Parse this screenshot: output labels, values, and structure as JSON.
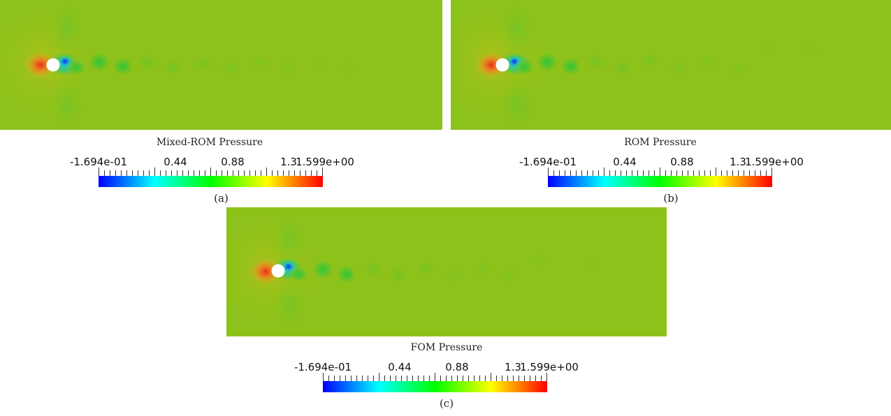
{
  "panels": [
    {
      "id": "a",
      "title": "Mixed-ROM Pressure",
      "caption": "(a)"
    },
    {
      "id": "b",
      "title": "ROM Pressure",
      "caption": "(b)"
    },
    {
      "id": "c",
      "title": "FOM Pressure",
      "caption": "(c)"
    }
  ],
  "colorbar": {
    "labels": [
      "-1.694e-01",
      "0.44",
      "0.88",
      "1.3",
      "1.599e+00"
    ],
    "min": -0.1694,
    "max": 1.599,
    "colors": [
      "#0000ff",
      "#00ffff",
      "#00ff00",
      "#ffff00",
      "#ff0000"
    ]
  },
  "field_colors": {
    "background": "#8cc21a",
    "upstream_red": "#e8401c",
    "wake_blue": "#1a3fd8",
    "wake_green": "#33c43a",
    "cylinder": "#ffffff"
  }
}
